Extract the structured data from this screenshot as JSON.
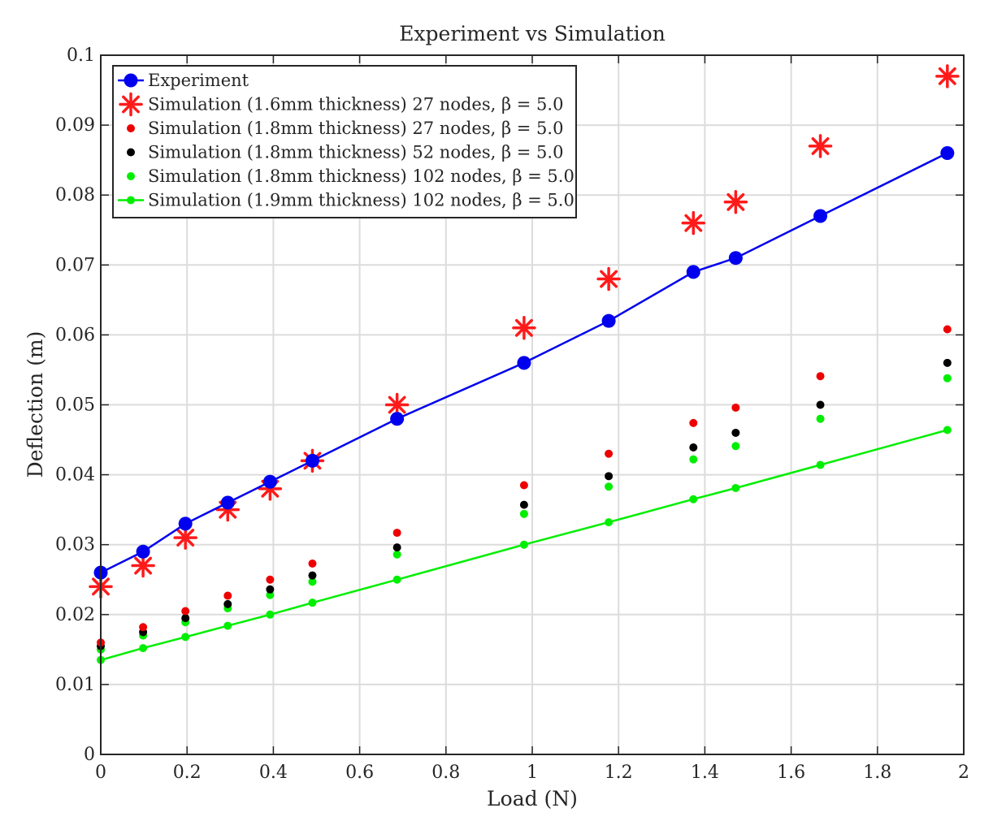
{
  "chart_data": {
    "type": "scatter",
    "title": "Experiment vs Simulation",
    "xlabel": "Load (N)",
    "ylabel": "Deflection (m)",
    "xlim": [
      0,
      2
    ],
    "ylim": [
      0,
      0.1
    ],
    "xticks": [
      0,
      0.2,
      0.4,
      0.6,
      0.8,
      1,
      1.2,
      1.4,
      1.6,
      1.8,
      2
    ],
    "xtick_labels": [
      "0",
      "0.2",
      "0.4",
      "0.6",
      "0.8",
      "1",
      "1.2",
      "1.4",
      "1.6",
      "1.8",
      "2"
    ],
    "yticks": [
      0,
      0.01,
      0.02,
      0.03,
      0.04,
      0.05,
      0.06,
      0.07,
      0.08,
      0.09,
      0.1
    ],
    "ytick_labels": [
      "0",
      "0.01",
      "0.02",
      "0.03",
      "0.04",
      "0.05",
      "0.06",
      "0.07",
      "0.08",
      "0.09",
      "0.1"
    ],
    "grid": true,
    "legend_position": "top-left",
    "x": [
      0,
      0.0981,
      0.1962,
      0.2943,
      0.3924,
      0.4905,
      0.6867,
      0.981,
      1.1772,
      1.3734,
      1.4715,
      1.6677,
      1.962
    ],
    "series": [
      {
        "name": "Experiment",
        "legend": "Experiment",
        "color": "#0000ee",
        "marker": "circle-large",
        "line": true,
        "values": [
          0.026,
          0.029,
          0.033,
          0.036,
          0.039,
          0.042,
          0.048,
          0.056,
          0.062,
          0.069,
          0.071,
          0.077,
          0.086
        ]
      },
      {
        "name": "Simulation (1.6mm thickness) 27 nodes, beta = 5.0",
        "legend": "Simulation (1.6mm thickness) 27 nodes, β = 5.0",
        "color": "#ff1a1a",
        "marker": "asterisk",
        "line": false,
        "values": [
          0.024,
          0.027,
          0.031,
          0.035,
          0.038,
          0.042,
          0.05,
          0.061,
          0.068,
          0.076,
          0.079,
          0.087,
          0.097
        ]
      },
      {
        "name": "Simulation (1.8mm thickness) 27 nodes, beta = 5.0",
        "legend": "Simulation (1.8mm thickness) 27 nodes, β = 5.0",
        "color": "#ee0000",
        "marker": "dot",
        "line": false,
        "values": [
          0.016,
          0.0182,
          0.0205,
          0.0227,
          0.025,
          0.0273,
          0.0317,
          0.0385,
          0.043,
          0.0474,
          0.0496,
          0.0541,
          0.0608
        ]
      },
      {
        "name": "Simulation (1.8mm thickness) 52 nodes, beta = 5.0",
        "legend": "Simulation (1.8mm thickness) 52 nodes, β = 5.0",
        "color": "#000000",
        "marker": "dot",
        "line": false,
        "values": [
          0.0155,
          0.0175,
          0.0195,
          0.0215,
          0.0236,
          0.0256,
          0.0296,
          0.0357,
          0.0398,
          0.0439,
          0.046,
          0.05,
          0.056
        ]
      },
      {
        "name": "Simulation (1.8mm thickness) 102 nodes, beta = 5.0",
        "legend": "Simulation (1.8mm thickness) 102 nodes, β = 5.0",
        "color": "#00ee00",
        "marker": "dot",
        "line": false,
        "values": [
          0.015,
          0.017,
          0.0189,
          0.0209,
          0.0228,
          0.0247,
          0.0286,
          0.0344,
          0.0383,
          0.0422,
          0.0441,
          0.048,
          0.0538
        ]
      },
      {
        "name": "Simulation (1.9mm thickness) 102 nodes, beta = 5.0",
        "legend": "Simulation (1.9mm thickness) 102 nodes, β = 5.0",
        "color": "#00ee00",
        "marker": "dot",
        "line": true,
        "values": [
          0.0135,
          0.0152,
          0.0168,
          0.0184,
          0.02,
          0.0217,
          0.025,
          0.03,
          0.0332,
          0.0365,
          0.0381,
          0.0414,
          0.0464
        ]
      }
    ]
  }
}
